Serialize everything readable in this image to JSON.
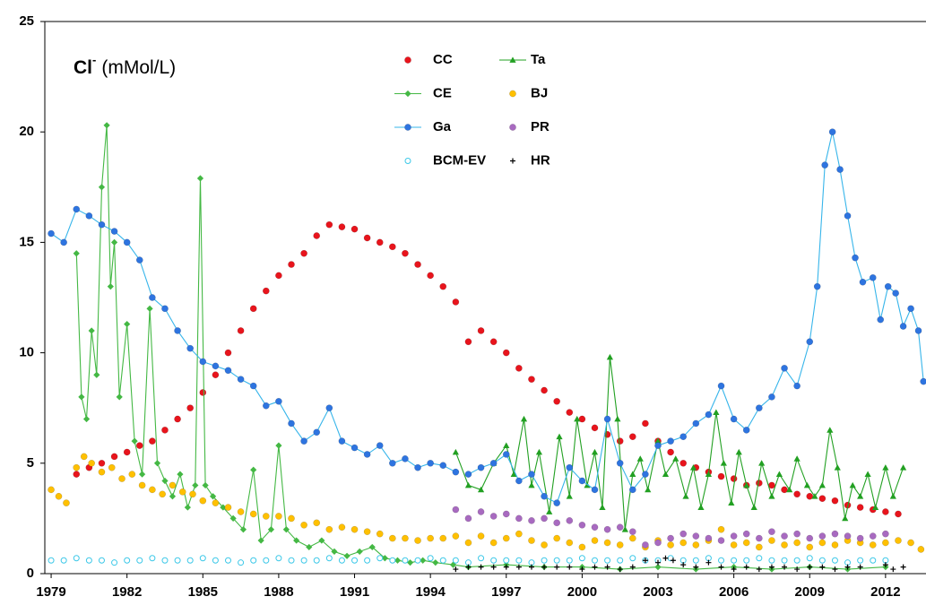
{
  "chart_data": {
    "type": "scatter",
    "title": "Cl",
    "title_superscript": "-",
    "title_unit": "(mMol/L)",
    "xlim": [
      1978.75,
      2013.6
    ],
    "xticks": [
      1979,
      1982,
      1985,
      1988,
      1991,
      1994,
      1997,
      2000,
      2003,
      2006,
      2009,
      2012
    ],
    "ylim": [
      0,
      25
    ],
    "yticks": [
      0,
      5,
      10,
      15,
      20,
      25
    ],
    "series": [
      {
        "name": "CC",
        "color": "#e8141c",
        "marker": "circle",
        "line": false,
        "x": [
          1980,
          1980.5,
          1981,
          1981.5,
          1982,
          1982.5,
          1983,
          1983.5,
          1984,
          1984.5,
          1985,
          1985.5,
          1986,
          1986.5,
          1987,
          1987.5,
          1988,
          1988.5,
          1989,
          1989.5,
          1990,
          1990.5,
          1991,
          1991.5,
          1992,
          1992.5,
          1993,
          1993.5,
          1994,
          1994.5,
          1995,
          1995.5,
          1996,
          1996.5,
          1997,
          1997.5,
          1998,
          1998.5,
          1999,
          1999.5,
          2000,
          2000.5,
          2001,
          2001.5,
          2002,
          2002.5,
          2003,
          2003.5,
          2004,
          2004.5,
          2005,
          2005.5,
          2006,
          2006.5,
          2007,
          2007.5,
          2008,
          2008.5,
          2009,
          2009.5,
          2010,
          2010.5,
          2011,
          2011.5,
          2012,
          2012.5
        ],
        "values": [
          4.5,
          4.8,
          5.0,
          5.3,
          5.5,
          5.8,
          6.0,
          6.5,
          7.0,
          7.5,
          8.2,
          9.0,
          10.0,
          11.0,
          12.0,
          12.8,
          13.5,
          14.0,
          14.5,
          15.3,
          15.8,
          15.7,
          15.6,
          15.2,
          15.0,
          14.8,
          14.5,
          14.0,
          13.5,
          13.0,
          12.3,
          10.5,
          11.0,
          10.5,
          10.0,
          9.3,
          8.8,
          8.3,
          7.8,
          7.3,
          7.0,
          6.6,
          6.3,
          6.0,
          6.2,
          6.8,
          6.0,
          5.5,
          5.0,
          4.8,
          4.6,
          4.4,
          4.3,
          4.0,
          4.1,
          4.0,
          3.8,
          3.6,
          3.5,
          3.4,
          3.3,
          3.1,
          3.0,
          2.9,
          2.8,
          2.7
        ]
      },
      {
        "name": "Ta",
        "color": "#22a022",
        "marker": "triangle",
        "line": true,
        "x": [
          1995,
          1995.5,
          1996,
          1996.5,
          1997,
          1997.3,
          1997.7,
          1998,
          1998.3,
          1998.7,
          1999.1,
          1999.5,
          1999.8,
          2000.2,
          2000.5,
          2000.8,
          2001.1,
          2001.4,
          2001.7,
          2002,
          2002.3,
          2002.6,
          2003,
          2003.3,
          2003.7,
          2004.1,
          2004.4,
          2004.7,
          2005,
          2005.3,
          2005.6,
          2005.9,
          2006.2,
          2006.5,
          2006.8,
          2007.1,
          2007.5,
          2007.8,
          2008.2,
          2008.5,
          2008.9,
          2009.2,
          2009.5,
          2009.8,
          2010.1,
          2010.4,
          2010.7,
          2011,
          2011.3,
          2011.6,
          2012,
          2012.3,
          2012.7
        ],
        "values": [
          5.5,
          4.0,
          3.8,
          5.0,
          5.8,
          4.5,
          7.0,
          4.0,
          5.5,
          2.8,
          6.2,
          3.5,
          7.0,
          4.0,
          5.5,
          3.0,
          9.8,
          7.0,
          2.0,
          4.5,
          5.2,
          3.8,
          6.0,
          4.5,
          5.2,
          3.5,
          4.8,
          3.0,
          4.5,
          7.3,
          5.0,
          3.2,
          5.5,
          4.0,
          3.0,
          5.0,
          3.5,
          4.5,
          3.8,
          5.2,
          4.0,
          3.5,
          4.0,
          6.5,
          4.8,
          2.5,
          4.0,
          3.5,
          4.5,
          3.0,
          4.8,
          3.5,
          4.8
        ]
      },
      {
        "name": "CE",
        "color": "#44b844",
        "marker": "diamond",
        "line": true,
        "x": [
          1980,
          1980.2,
          1980.4,
          1980.6,
          1980.8,
          1981,
          1981.2,
          1981.35,
          1981.5,
          1981.7,
          1982,
          1982.3,
          1982.6,
          1982.9,
          1983.2,
          1983.5,
          1983.8,
          1984.1,
          1984.4,
          1984.7,
          1984.9,
          1985.1,
          1985.4,
          1985.8,
          1986.2,
          1986.6,
          1987,
          1987.3,
          1987.7,
          1988,
          1988.3,
          1988.7,
          1989.2,
          1989.7,
          1990.2,
          1990.7,
          1991.2,
          1991.7,
          1992.2,
          1992.7,
          1993.2,
          1993.7,
          1994.2,
          1994.9,
          1995.5,
          1997,
          1998.5,
          2000,
          2001.5,
          2003,
          2004.5,
          2006,
          2007.5,
          2009,
          2010.5,
          2012
        ],
        "values": [
          14.5,
          8.0,
          7.0,
          11.0,
          9.0,
          17.5,
          20.3,
          13.0,
          15.0,
          8.0,
          11.3,
          6.0,
          4.5,
          12.0,
          5.0,
          4.2,
          3.5,
          4.5,
          3.0,
          4.0,
          17.9,
          4.0,
          3.5,
          3.0,
          2.5,
          2.0,
          4.7,
          1.5,
          2.0,
          5.8,
          2.0,
          1.5,
          1.2,
          1.5,
          1.0,
          0.8,
          1.0,
          1.2,
          0.7,
          0.6,
          0.5,
          0.6,
          0.5,
          0.4,
          0.3,
          0.4,
          0.3,
          0.3,
          0.2,
          0.3,
          0.2,
          0.3,
          0.2,
          0.3,
          0.2,
          0.3
        ]
      },
      {
        "name": "BJ",
        "color": "#ffc000",
        "marker": "circle",
        "line": false,
        "x": [
          1979,
          1979.3,
          1979.6,
          1980,
          1980.3,
          1980.6,
          1981,
          1981.4,
          1981.8,
          1982.2,
          1982.6,
          1983,
          1983.4,
          1983.8,
          1984.2,
          1984.6,
          1985,
          1985.5,
          1986,
          1986.5,
          1987,
          1987.5,
          1988,
          1988.5,
          1989,
          1989.5,
          1990,
          1990.5,
          1991,
          1991.5,
          1992,
          1992.5,
          1993,
          1993.5,
          1994,
          1994.5,
          1995,
          1995.5,
          1996,
          1996.5,
          1997,
          1997.5,
          1998,
          1998.5,
          1999,
          1999.5,
          2000,
          2000.5,
          2001,
          2001.5,
          2002,
          2002.5,
          2003,
          2003.5,
          2004,
          2004.5,
          2005,
          2005.5,
          2006,
          2006.5,
          2007,
          2007.5,
          2008,
          2008.5,
          2009,
          2009.5,
          2010,
          2010.5,
          2011,
          2011.5,
          2012,
          2012.5,
          2013,
          2013.4
        ],
        "values": [
          3.8,
          3.5,
          3.2,
          4.8,
          5.3,
          5.0,
          4.6,
          4.8,
          4.3,
          4.5,
          4.0,
          3.8,
          3.6,
          4.0,
          3.7,
          3.6,
          3.3,
          3.2,
          3.0,
          2.8,
          2.7,
          2.6,
          2.6,
          2.5,
          2.2,
          2.3,
          2.0,
          2.1,
          2.0,
          1.9,
          1.8,
          1.6,
          1.6,
          1.5,
          1.6,
          1.6,
          1.7,
          1.4,
          1.7,
          1.4,
          1.6,
          1.8,
          1.5,
          1.3,
          1.6,
          1.4,
          1.2,
          1.5,
          1.4,
          1.3,
          1.6,
          1.2,
          1.5,
          1.3,
          1.4,
          1.3,
          1.5,
          2.0,
          1.3,
          1.4,
          1.2,
          1.5,
          1.3,
          1.4,
          1.2,
          1.4,
          1.3,
          1.5,
          1.4,
          1.3,
          1.4,
          1.5,
          1.4,
          1.1
        ]
      },
      {
        "name": "Ga",
        "color": "#2e74e0",
        "line_color": "#37b5ea",
        "marker": "circle",
        "line": true,
        "x": [
          1979,
          1979.5,
          1980,
          1980.5,
          1981,
          1981.5,
          1982,
          1982.5,
          1983,
          1983.5,
          1984,
          1984.5,
          1985,
          1985.5,
          1986,
          1986.5,
          1987,
          1987.5,
          1988,
          1988.5,
          1989,
          1989.5,
          1990,
          1990.5,
          1991,
          1991.5,
          1992,
          1992.5,
          1993,
          1993.5,
          1994,
          1994.5,
          1995,
          1995.2,
          1995.5,
          1996,
          1996.5,
          1997,
          1997.5,
          1998,
          1998.5,
          1999,
          1999.5,
          2000,
          2000.5,
          2001,
          2001.5,
          2002,
          2002.5,
          2003,
          2003.5,
          2004,
          2004.5,
          2005,
          2005.5,
          2006,
          2006.5,
          2007,
          2007.5,
          2008,
          2008.5,
          2009,
          2009.3,
          2009.6,
          2009.9,
          2010.2,
          2010.5,
          2010.8,
          2011.1,
          2011.5,
          2011.8,
          2012.1,
          2012.4,
          2012.7,
          2013,
          2013.3,
          2013.5
        ],
        "values": [
          15.4,
          15.0,
          16.5,
          16.2,
          15.8,
          15.5,
          15.0,
          14.2,
          12.5,
          12.0,
          11.0,
          10.2,
          9.6,
          9.4,
          9.2,
          8.8,
          8.5,
          7.6,
          7.8,
          6.8,
          6.0,
          6.4,
          7.5,
          6.0,
          5.7,
          5.4,
          5.8,
          5.0,
          5.2,
          4.8,
          5.0,
          4.9,
          4.6,
          null,
          4.5,
          4.8,
          5.0,
          5.4,
          4.2,
          4.5,
          3.5,
          3.2,
          4.8,
          4.2,
          3.8,
          7.0,
          5.0,
          3.8,
          4.5,
          5.8,
          6.0,
          6.2,
          6.8,
          7.2,
          8.5,
          7.0,
          6.5,
          7.5,
          8.0,
          9.3,
          8.5,
          10.5,
          13.0,
          18.5,
          20.0,
          18.3,
          16.2,
          14.3,
          13.2,
          13.4,
          11.5,
          13.0,
          12.7,
          11.2,
          12.0,
          11.0,
          8.7
        ]
      },
      {
        "name": "PR",
        "color": "#a86ac0",
        "marker": "circle",
        "line": false,
        "x": [
          1995,
          1995.5,
          1996,
          1996.5,
          1997,
          1997.5,
          1998,
          1998.5,
          1999,
          1999.5,
          2000,
          2000.5,
          2001,
          2001.5,
          2002,
          2002.5,
          2003,
          2003.5,
          2004,
          2004.5,
          2005,
          2005.5,
          2006,
          2006.5,
          2007,
          2007.5,
          2008,
          2008.5,
          2009,
          2009.5,
          2010,
          2010.5,
          2011,
          2011.5,
          2012
        ],
        "values": [
          2.9,
          2.5,
          2.8,
          2.6,
          2.7,
          2.5,
          2.4,
          2.5,
          2.3,
          2.4,
          2.2,
          2.1,
          2.0,
          2.1,
          1.9,
          1.3,
          1.4,
          1.6,
          1.8,
          1.7,
          1.6,
          1.5,
          1.7,
          1.8,
          1.6,
          1.9,
          1.7,
          1.8,
          1.6,
          1.7,
          1.8,
          1.7,
          1.6,
          1.7,
          1.8
        ]
      },
      {
        "name": "BCM-EV",
        "color": "#3cc8e8",
        "marker": "open-circle",
        "line": false,
        "x": [
          1979,
          1979.5,
          1980,
          1980.5,
          1981,
          1981.5,
          1982,
          1982.5,
          1983,
          1983.5,
          1984,
          1984.5,
          1985,
          1985.5,
          1986,
          1986.5,
          1987,
          1987.5,
          1988,
          1988.5,
          1989,
          1989.5,
          1990,
          1990.5,
          1991,
          1991.5,
          1992,
          1992.5,
          1993,
          1993.5,
          1994,
          1994.5,
          1995,
          1995.5,
          1996,
          1996.5,
          1997,
          1997.5,
          1998,
          1998.5,
          1999,
          1999.5,
          2000,
          2000.5,
          2001,
          2001.5,
          2002,
          2002.5,
          2003,
          2003.5,
          2004,
          2004.5,
          2005,
          2005.5,
          2006,
          2006.5,
          2007,
          2007.5,
          2008,
          2008.5,
          2009,
          2009.5,
          2010,
          2010.5,
          2011,
          2011.5,
          2012
        ],
        "values": [
          0.6,
          0.6,
          0.7,
          0.6,
          0.6,
          0.5,
          0.6,
          0.6,
          0.7,
          0.6,
          0.6,
          0.6,
          0.7,
          0.6,
          0.6,
          0.5,
          0.6,
          0.6,
          0.7,
          0.6,
          0.6,
          0.6,
          0.7,
          0.6,
          0.6,
          0.6,
          0.7,
          0.6,
          0.6,
          0.6,
          0.7,
          0.6,
          0.6,
          0.5,
          0.7,
          0.6,
          0.6,
          0.6,
          0.5,
          0.6,
          0.6,
          0.6,
          0.7,
          0.6,
          0.6,
          0.6,
          0.7,
          0.6,
          0.6,
          0.7,
          0.6,
          0.6,
          0.7,
          0.6,
          0.6,
          0.6,
          0.7,
          0.6,
          0.6,
          0.6,
          0.7,
          0.6,
          0.6,
          0.5,
          0.6,
          0.6,
          0.6
        ]
      },
      {
        "name": "HR",
        "color": "#000000",
        "marker": "plus",
        "line": false,
        "x": [
          1995,
          1995.5,
          1996,
          1996.5,
          1997,
          1997.5,
          1998,
          1998.5,
          1999,
          1999.5,
          2000,
          2000.5,
          2001,
          2001.5,
          2002,
          2002.5,
          2003,
          2003.3,
          2003.6,
          2004,
          2004.5,
          2005,
          2005.5,
          2006,
          2006.5,
          2007,
          2007.5,
          2008,
          2008.5,
          2009,
          2009.5,
          2010,
          2010.5,
          2011,
          2012,
          2012.3,
          2012.7
        ],
        "values": [
          0.2,
          0.3,
          0.3,
          0.3,
          0.3,
          0.3,
          0.3,
          0.3,
          0.3,
          0.3,
          0.2,
          0.3,
          0.3,
          0.2,
          0.3,
          0.6,
          0.5,
          0.7,
          0.6,
          0.4,
          0.3,
          0.5,
          0.3,
          0.2,
          0.3,
          0.2,
          0.3,
          0.3,
          0.2,
          0.3,
          0.3,
          0.2,
          0.3,
          0.3,
          0.4,
          0.2,
          0.3
        ]
      }
    ]
  }
}
